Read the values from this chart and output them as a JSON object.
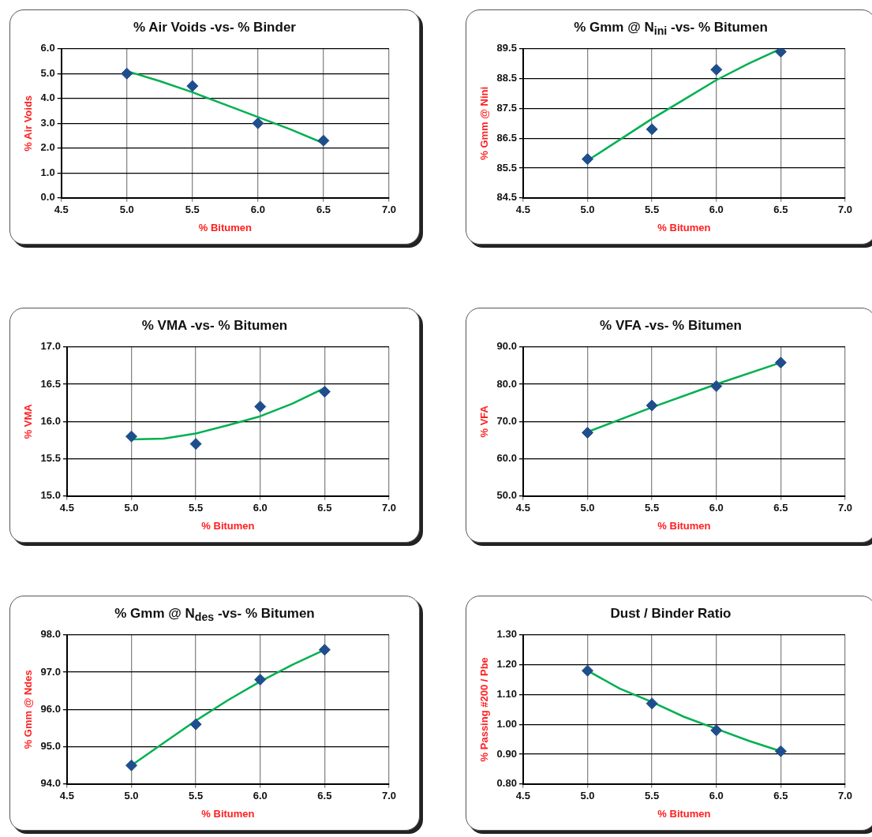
{
  "chart_data": [
    {
      "type": "scatter",
      "title": "% Air Voids -vs- % Binder",
      "xlabel": "% Bitumen",
      "ylabel": "% Air Voids",
      "xlim": [
        4.5,
        7.0
      ],
      "xticks": [
        4.5,
        {
          "value": 5,
          "label": "5.0"
        },
        5.5,
        {
          "value": 6,
          "label": "6.0"
        },
        6.5,
        {
          "value": 7,
          "label": "7.0"
        }
      ],
      "ylim": [
        0,
        6
      ],
      "yticks": [
        {
          "value": 0,
          "label": "0.0"
        },
        {
          "value": 1,
          "label": "1.0"
        },
        {
          "value": 2,
          "label": "2.0"
        },
        {
          "value": 3,
          "label": "3.0"
        },
        {
          "value": 4,
          "label": "4.0"
        },
        {
          "value": 5,
          "label": "5.0"
        },
        {
          "value": 6,
          "label": "6.0"
        }
      ],
      "grid": true,
      "legend": false,
      "series": [
        {
          "type": "scatter",
          "marker": "diamond",
          "color": "#1f4e8c",
          "x": [
            5.0,
            5.5,
            6.0,
            6.5
          ],
          "values": [
            5.0,
            4.5,
            3.0,
            2.3
          ]
        },
        {
          "type": "line",
          "marker": "none",
          "color": "#00b050",
          "x": [
            5.0,
            5.25,
            5.5,
            5.75,
            6.0,
            6.25,
            6.5
          ],
          "values": [
            5.1,
            4.7,
            4.25,
            3.75,
            3.25,
            2.75,
            2.2
          ]
        }
      ]
    },
    {
      "type": "scatter",
      "title": "% Gmm @ N$_{ini}$ -vs- % Bitumen",
      "xlabel": "% Bitumen",
      "ylabel": "% Gmm @ Nini",
      "xlim": [
        4.5,
        7.0
      ],
      "xticks": [
        4.5,
        {
          "value": 5,
          "label": "5.0"
        },
        5.5,
        {
          "value": 6,
          "label": "6.0"
        },
        6.5,
        {
          "value": 7,
          "label": "7.0"
        }
      ],
      "ylim": [
        84.5,
        89.5
      ],
      "yticks": [
        84.5,
        85.5,
        86.5,
        87.5,
        88.5,
        89.5
      ],
      "grid": true,
      "legend": false,
      "series": [
        {
          "type": "scatter",
          "marker": "diamond",
          "color": "#1f4e8c",
          "x": [
            5.0,
            5.5,
            6.0,
            6.5
          ],
          "values": [
            85.8,
            86.8,
            88.8,
            89.4
          ]
        },
        {
          "type": "line",
          "marker": "none",
          "color": "#00b050",
          "x": [
            5.0,
            5.25,
            5.5,
            5.75,
            6.0,
            6.25,
            6.5
          ],
          "values": [
            85.75,
            86.45,
            87.15,
            87.8,
            88.45,
            89.0,
            89.5
          ]
        }
      ]
    },
    {
      "type": "scatter",
      "title": "% VMA -vs- % Bitumen",
      "xlabel": "% Bitumen",
      "ylabel": "% VMA",
      "xlim": [
        4.5,
        7.0
      ],
      "xticks": [
        4.5,
        {
          "value": 5,
          "label": "5.0"
        },
        5.5,
        {
          "value": 6,
          "label": "6.0"
        },
        6.5,
        {
          "value": 7,
          "label": "7.0"
        }
      ],
      "ylim": [
        15,
        17
      ],
      "yticks": [
        {
          "value": 15,
          "label": "15.0"
        },
        15.5,
        {
          "value": 16,
          "label": "16.0"
        },
        16.5,
        {
          "value": 17,
          "label": "17.0"
        }
      ],
      "grid": true,
      "legend": false,
      "series": [
        {
          "type": "scatter",
          "marker": "diamond",
          "color": "#1f4e8c",
          "x": [
            5.0,
            5.5,
            6.0,
            6.5
          ],
          "values": [
            15.8,
            15.7,
            16.2,
            16.4
          ]
        },
        {
          "type": "line",
          "marker": "none",
          "color": "#00b050",
          "x": [
            5.0,
            5.25,
            5.5,
            5.75,
            6.0,
            6.25,
            6.5
          ],
          "values": [
            15.76,
            15.77,
            15.84,
            15.95,
            16.07,
            16.24,
            16.45
          ]
        }
      ]
    },
    {
      "type": "scatter",
      "title": "% VFA -vs- % Bitumen",
      "xlabel": "% Bitumen",
      "ylabel": "% VFA",
      "xlim": [
        4.5,
        7.0
      ],
      "xticks": [
        4.5,
        {
          "value": 5,
          "label": "5.0"
        },
        5.5,
        {
          "value": 6,
          "label": "6.0"
        },
        6.5,
        {
          "value": 7,
          "label": "7.0"
        }
      ],
      "ylim": [
        50,
        90
      ],
      "yticks": [
        {
          "value": 50,
          "label": "50.0"
        },
        {
          "value": 60,
          "label": "60.0"
        },
        {
          "value": 70,
          "label": "70.0"
        },
        {
          "value": 80,
          "label": "80.0"
        },
        {
          "value": 90,
          "label": "90.0"
        }
      ],
      "grid": true,
      "legend": false,
      "series": [
        {
          "type": "scatter",
          "marker": "diamond",
          "color": "#1f4e8c",
          "x": [
            5.0,
            5.5,
            6.0,
            6.5
          ],
          "values": [
            67.0,
            74.3,
            79.5,
            85.8
          ]
        },
        {
          "type": "line",
          "marker": "none",
          "color": "#00b050",
          "x": [
            5.0,
            5.5,
            6.0,
            6.5
          ],
          "values": [
            67.2,
            73.8,
            80.0,
            85.8
          ]
        }
      ]
    },
    {
      "type": "scatter",
      "title": "% Gmm @ N$_{des}$ -vs- % Bitumen",
      "xlabel": "% Bitumen",
      "ylabel": "% Gmm @ Ndes",
      "xlim": [
        4.5,
        7.0
      ],
      "xticks": [
        4.5,
        {
          "value": 5,
          "label": "5.0"
        },
        5.5,
        {
          "value": 6,
          "label": "6.0"
        },
        6.5,
        {
          "value": 7,
          "label": "7.0"
        }
      ],
      "ylim": [
        94,
        98
      ],
      "yticks": [
        {
          "value": 94,
          "label": "94.0"
        },
        {
          "value": 95,
          "label": "95.0"
        },
        {
          "value": 96,
          "label": "96.0"
        },
        {
          "value": 97,
          "label": "97.0"
        },
        {
          "value": 98,
          "label": "98.0"
        }
      ],
      "grid": true,
      "legend": false,
      "series": [
        {
          "type": "scatter",
          "marker": "diamond",
          "color": "#1f4e8c",
          "x": [
            5.0,
            5.5,
            6.0,
            6.5
          ],
          "values": [
            94.5,
            95.6,
            96.8,
            97.6
          ]
        },
        {
          "type": "line",
          "marker": "none",
          "color": "#00b050",
          "x": [
            5.0,
            5.25,
            5.5,
            5.75,
            6.0,
            6.25,
            6.5
          ],
          "values": [
            94.5,
            95.1,
            95.7,
            96.25,
            96.75,
            97.2,
            97.6
          ]
        }
      ]
    },
    {
      "type": "scatter",
      "title": "Dust / Binder Ratio",
      "xlabel": "% Bitumen",
      "ylabel": "% Passing #200 / Pbe",
      "xlim": [
        4.5,
        7.0
      ],
      "xticks": [
        4.5,
        {
          "value": 5,
          "label": "5.0"
        },
        5.5,
        {
          "value": 6,
          "label": "6.0"
        },
        6.5,
        {
          "value": 7,
          "label": "7.0"
        }
      ],
      "ylim": [
        0.8,
        1.3
      ],
      "yticks": [
        {
          "value": 0.8,
          "label": "0.80"
        },
        {
          "value": 0.9,
          "label": "0.90"
        },
        {
          "value": 1.0,
          "label": "1.00"
        },
        {
          "value": 1.1,
          "label": "1.10"
        },
        {
          "value": 1.2,
          "label": "1.20"
        },
        {
          "value": 1.3,
          "label": "1.30"
        }
      ],
      "grid": true,
      "legend": false,
      "series": [
        {
          "type": "scatter",
          "marker": "diamond",
          "color": "#1f4e8c",
          "x": [
            5.0,
            5.5,
            6.0,
            6.5
          ],
          "values": [
            1.18,
            1.07,
            0.98,
            0.91
          ]
        },
        {
          "type": "line",
          "marker": "none",
          "color": "#00b050",
          "x": [
            5.0,
            5.25,
            5.5,
            5.75,
            6.0,
            6.25,
            6.5
          ],
          "values": [
            1.18,
            1.12,
            1.075,
            1.025,
            0.985,
            0.945,
            0.91
          ]
        }
      ]
    }
  ]
}
